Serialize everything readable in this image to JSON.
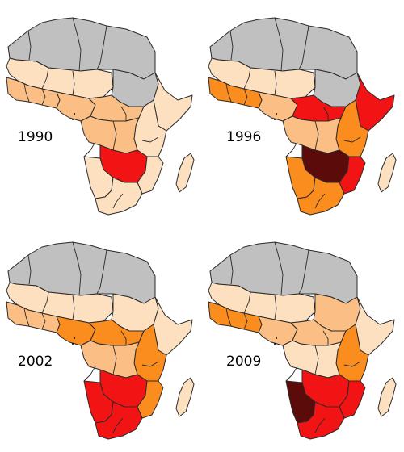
{
  "colors": {
    "no_data": "#c0c0c0",
    "lowest": "#fde0c0",
    "low": "#fbbf86",
    "medium": "#fb8c1e",
    "high": "#f21414",
    "highest": "#5c0b0b"
  },
  "panels": [
    {
      "year": "1990",
      "regions": {
        "north": "no_data",
        "sahel": "lowest",
        "west": "low",
        "nigeria": "low",
        "sudan": "no_data",
        "horn": "lowest",
        "central": "low",
        "east": "lowest",
        "congo": "low",
        "southcentral": "high",
        "southwest": "lowest",
        "southeast": "lowest",
        "south": "lowest",
        "madagascar": "lowest"
      }
    },
    {
      "year": "1996",
      "regions": {
        "north": "no_data",
        "sahel": "lowest",
        "west": "medium",
        "nigeria": "low",
        "sudan": "no_data",
        "horn": "high",
        "central": "high",
        "east": "medium",
        "congo": "low",
        "southcentral": "highest",
        "southwest": "medium",
        "southeast": "high",
        "south": "medium",
        "madagascar": "lowest"
      }
    },
    {
      "year": "2002",
      "regions": {
        "north": "no_data",
        "sahel": "lowest",
        "west": "low",
        "nigeria": "medium",
        "sudan": "lowest",
        "horn": "lowest",
        "central": "medium",
        "east": "medium",
        "congo": "low",
        "southcentral": "high",
        "southwest": "high",
        "southeast": "medium",
        "south": "high",
        "madagascar": "lowest"
      }
    },
    {
      "year": "2009",
      "regions": {
        "north": "no_data",
        "sahel": "lowest",
        "west": "medium",
        "nigeria": "low",
        "sudan": "low",
        "horn": "lowest",
        "central": "low",
        "east": "medium",
        "congo": "lowest",
        "southcentral": "high",
        "southwest": "highest",
        "southeast": "high",
        "south": "high",
        "madagascar": "lowest"
      }
    }
  ]
}
